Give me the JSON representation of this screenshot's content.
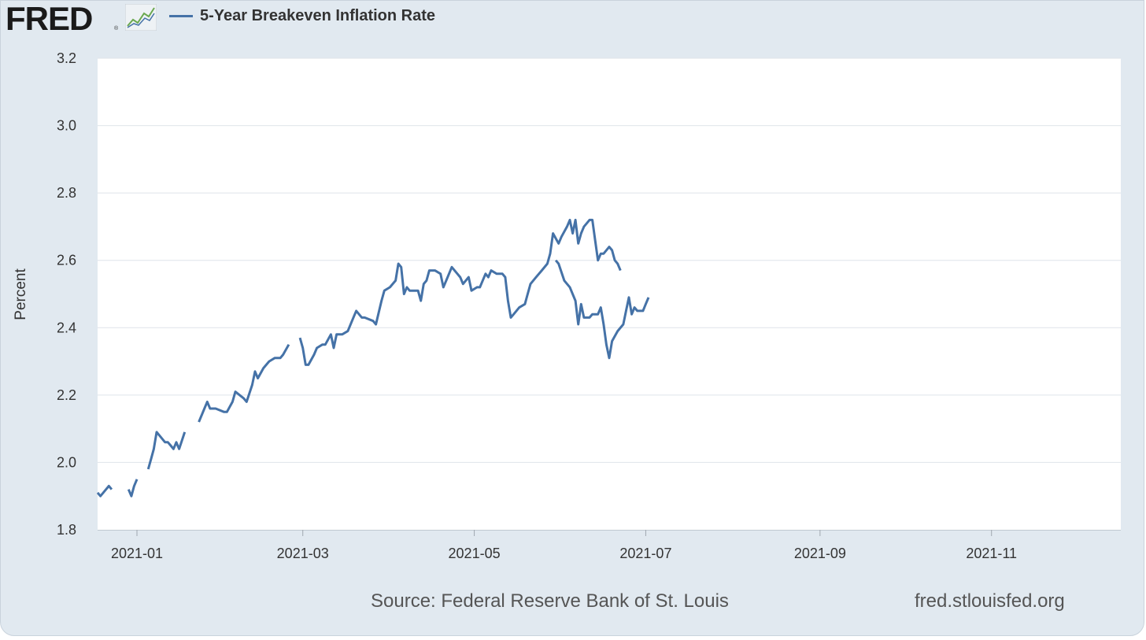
{
  "header": {
    "logo_text": "FRED",
    "logo_mark": "®",
    "logo_icon": "line-graph-icon"
  },
  "colors": {
    "series": "#4572a7",
    "background": "#e1e9f0",
    "plot_area": "#ffffff",
    "grid": "#dfe4ea"
  },
  "chart_data": {
    "type": "line",
    "title": "5-Year Breakeven Inflation Rate",
    "xlabel": "",
    "ylabel": "Percent",
    "ylim": [
      1.8,
      3.2
    ],
    "yticks": [
      1.8,
      2.0,
      2.2,
      2.4,
      2.6,
      2.8,
      3.0,
      3.2
    ],
    "ytick_labels": [
      "1.8",
      "2.0",
      "2.2",
      "2.4",
      "2.6",
      "2.8",
      "3.0",
      "3.2"
    ],
    "xlim": [
      "2020-12-18",
      "2021-12-17"
    ],
    "xticks": [
      "2021-01-01",
      "2021-03-01",
      "2021-05-01",
      "2021-07-01",
      "2021-09-01",
      "2021-11-01"
    ],
    "xtick_labels": [
      "2021-01",
      "2021-03",
      "2021-05",
      "2021-07",
      "2021-09",
      "2021-11"
    ],
    "grid": true,
    "legend": "top-left",
    "series": [
      {
        "name": "5-Year Breakeven Inflation Rate",
        "segments": [
          [
            [
              "2020-12-18",
              1.91
            ],
            [
              "2020-12-19",
              1.9
            ],
            [
              "2020-12-21",
              1.92
            ],
            [
              "2020-12-22",
              1.93
            ],
            [
              "2020-12-23",
              1.92
            ]
          ],
          [
            [
              "2020-12-29",
              1.92
            ],
            [
              "2020-12-30",
              1.9
            ],
            [
              "2020-12-31",
              1.93
            ],
            [
              "2021-01-01",
              1.95
            ]
          ],
          [
            [
              "2021-01-05",
              1.98
            ],
            [
              "2021-01-06",
              2.01
            ],
            [
              "2021-01-07",
              2.04
            ],
            [
              "2021-01-08",
              2.09
            ],
            [
              "2021-01-09",
              2.08
            ],
            [
              "2021-01-11",
              2.06
            ],
            [
              "2021-01-12",
              2.06
            ],
            [
              "2021-01-13",
              2.05
            ],
            [
              "2021-01-14",
              2.04
            ],
            [
              "2021-01-15",
              2.06
            ],
            [
              "2021-01-16",
              2.04
            ],
            [
              "2021-01-18",
              2.09
            ]
          ],
          [
            [
              "2021-01-23",
              2.12
            ],
            [
              "2021-01-25",
              2.16
            ],
            [
              "2021-01-26",
              2.18
            ],
            [
              "2021-01-27",
              2.16
            ],
            [
              "2021-01-29",
              2.16
            ],
            [
              "2021-02-01",
              2.15
            ],
            [
              "2021-02-02",
              2.15
            ],
            [
              "2021-02-04",
              2.18
            ],
            [
              "2021-02-05",
              2.21
            ],
            [
              "2021-02-08",
              2.19
            ],
            [
              "2021-02-09",
              2.18
            ],
            [
              "2021-02-11",
              2.23
            ],
            [
              "2021-02-12",
              2.27
            ],
            [
              "2021-02-13",
              2.25
            ],
            [
              "2021-02-15",
              2.28
            ],
            [
              "2021-02-17",
              2.3
            ],
            [
              "2021-02-19",
              2.31
            ],
            [
              "2021-02-21",
              2.31
            ],
            [
              "2021-02-22",
              2.32
            ],
            [
              "2021-02-24",
              2.35
            ]
          ],
          [
            [
              "2021-02-28",
              2.37
            ],
            [
              "2021-03-01",
              2.34
            ],
            [
              "2021-03-02",
              2.29
            ],
            [
              "2021-03-03",
              2.29
            ],
            [
              "2021-03-05",
              2.32
            ],
            [
              "2021-03-06",
              2.34
            ],
            [
              "2021-03-08",
              2.35
            ],
            [
              "2021-03-09",
              2.35
            ],
            [
              "2021-03-11",
              2.38
            ],
            [
              "2021-03-12",
              2.34
            ],
            [
              "2021-03-13",
              2.38
            ],
            [
              "2021-03-15",
              2.38
            ],
            [
              "2021-03-17",
              2.39
            ],
            [
              "2021-03-19",
              2.43
            ],
            [
              "2021-03-20",
              2.45
            ],
            [
              "2021-03-22",
              2.43
            ],
            [
              "2021-03-23",
              2.43
            ],
            [
              "2021-03-26",
              2.42
            ],
            [
              "2021-03-27",
              2.41
            ],
            [
              "2021-03-29",
              2.48
            ],
            [
              "2021-03-30",
              2.51
            ],
            [
              "2021-04-01",
              2.52
            ],
            [
              "2021-04-03",
              2.54
            ],
            [
              "2021-04-04",
              2.59
            ],
            [
              "2021-04-05",
              2.58
            ],
            [
              "2021-04-06",
              2.5
            ],
            [
              "2021-04-07",
              2.52
            ],
            [
              "2021-04-08",
              2.51
            ],
            [
              "2021-04-10",
              2.51
            ],
            [
              "2021-04-11",
              2.51
            ],
            [
              "2021-04-12",
              2.48
            ],
            [
              "2021-04-13",
              2.53
            ],
            [
              "2021-04-14",
              2.54
            ],
            [
              "2021-04-15",
              2.57
            ],
            [
              "2021-04-17",
              2.57
            ],
            [
              "2021-04-19",
              2.56
            ],
            [
              "2021-04-20",
              2.52
            ],
            [
              "2021-04-21",
              2.54
            ],
            [
              "2021-04-23",
              2.58
            ],
            [
              "2021-04-25",
              2.56
            ],
            [
              "2021-04-26",
              2.55
            ],
            [
              "2021-04-27",
              2.53
            ],
            [
              "2021-04-29",
              2.55
            ],
            [
              "2021-04-30",
              2.51
            ],
            [
              "2021-05-02",
              2.52
            ],
            [
              "2021-05-03",
              2.52
            ],
            [
              "2021-05-05",
              2.56
            ],
            [
              "2021-05-06",
              2.55
            ],
            [
              "2021-05-07",
              2.57
            ],
            [
              "2021-05-09",
              2.56
            ],
            [
              "2021-05-11",
              2.56
            ],
            [
              "2021-05-12",
              2.55
            ],
            [
              "2021-05-13",
              2.48
            ],
            [
              "2021-05-14",
              2.43
            ],
            [
              "2021-05-15",
              2.44
            ],
            [
              "2021-05-17",
              2.46
            ],
            [
              "2021-05-19",
              2.47
            ],
            [
              "2021-05-20",
              2.5
            ],
            [
              "2021-05-21",
              2.53
            ],
            [
              "2021-05-23",
              2.55
            ],
            [
              "2021-05-25",
              2.57
            ],
            [
              "2021-05-27",
              2.59
            ],
            [
              "2021-05-28",
              2.62
            ],
            [
              "2021-05-29",
              2.68
            ],
            [
              "2021-05-31",
              2.65
            ],
            [
              "2021-06-01",
              2.67
            ],
            [
              "2021-06-03",
              2.7
            ],
            [
              "2021-06-04",
              2.72
            ],
            [
              "2021-06-05",
              2.68
            ],
            [
              "2021-06-06",
              2.72
            ],
            [
              "2021-06-07",
              2.65
            ],
            [
              "2021-06-08",
              2.68
            ],
            [
              "2021-06-09",
              2.7
            ],
            [
              "2021-06-11",
              2.72
            ],
            [
              "2021-06-12",
              2.72
            ],
            [
              "2021-06-13",
              2.66
            ],
            [
              "2021-06-14",
              2.6
            ],
            [
              "2021-06-15",
              2.62
            ],
            [
              "2021-06-16",
              2.62
            ],
            [
              "2021-06-18",
              2.64
            ],
            [
              "2021-06-19",
              2.63
            ],
            [
              "2021-06-20",
              2.6
            ],
            [
              "2021-06-21",
              2.59
            ],
            [
              "2021-06-22",
              2.57
            ]
          ],
          [
            [
              "2021-05-30",
              2.6
            ],
            [
              "2021-05-31",
              2.59
            ],
            [
              "2021-06-02",
              2.54
            ],
            [
              "2021-06-04",
              2.52
            ],
            [
              "2021-06-06",
              2.48
            ],
            [
              "2021-06-07",
              2.41
            ],
            [
              "2021-06-08",
              2.47
            ],
            [
              "2021-06-09",
              2.43
            ],
            [
              "2021-06-11",
              2.43
            ],
            [
              "2021-06-12",
              2.44
            ],
            [
              "2021-06-14",
              2.44
            ],
            [
              "2021-06-15",
              2.46
            ],
            [
              "2021-06-16",
              2.41
            ],
            [
              "2021-06-17",
              2.35
            ],
            [
              "2021-06-18",
              2.31
            ],
            [
              "2021-06-19",
              2.36
            ],
            [
              "2021-06-21",
              2.39
            ],
            [
              "2021-06-23",
              2.41
            ],
            [
              "2021-06-24",
              2.45
            ],
            [
              "2021-06-25",
              2.49
            ],
            [
              "2021-06-26",
              2.44
            ],
            [
              "2021-06-27",
              2.46
            ],
            [
              "2021-06-28",
              2.45
            ],
            [
              "2021-06-30",
              2.45
            ],
            [
              "2021-07-01",
              2.47
            ],
            [
              "2021-07-02",
              2.49
            ]
          ]
        ]
      }
    ],
    "source": "Source: Federal Reserve Bank of St. Louis",
    "site": "fred.stlouisfed.org"
  }
}
